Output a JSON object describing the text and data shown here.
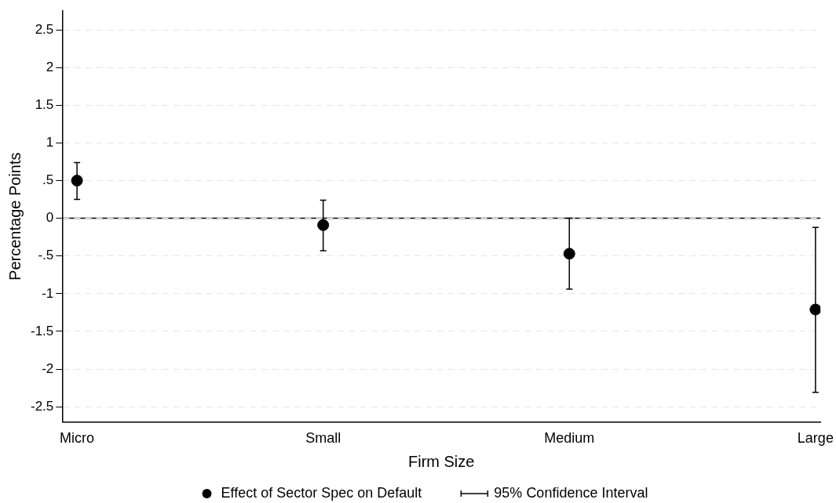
{
  "chart_data": {
    "type": "scatter",
    "xlabel": "Firm Size",
    "ylabel": "Percentage Points",
    "categories": [
      "Micro",
      "Small",
      "Medium",
      "Large"
    ],
    "series": [
      {
        "name": "Effect of Sector Spec on Default",
        "color": "#000000",
        "values": [
          0.5,
          -0.09,
          -0.47,
          -1.21
        ],
        "errors": [
          [
            0.25,
            0.74
          ],
          [
            -0.43,
            0.24
          ],
          [
            -0.94,
            0.0
          ],
          [
            -2.31,
            -0.12
          ]
        ]
      }
    ],
    "annotations": [
      "95% Confidence Interval"
    ],
    "ylim": [
      -2.7,
      2.75
    ],
    "yticks": [
      -2.5,
      -2,
      -1.5,
      -1,
      {
        "value": -0.5,
        "label": "-.5"
      },
      0,
      {
        "value": 0.5,
        "label": ".5"
      },
      1,
      1.5,
      2,
      2.5
    ],
    "ref_lines": [
      {
        "axis": "y",
        "value": 0,
        "color": "#000000"
      }
    ],
    "grid": "y",
    "legend": "bottom",
    "marker": "circle"
  }
}
